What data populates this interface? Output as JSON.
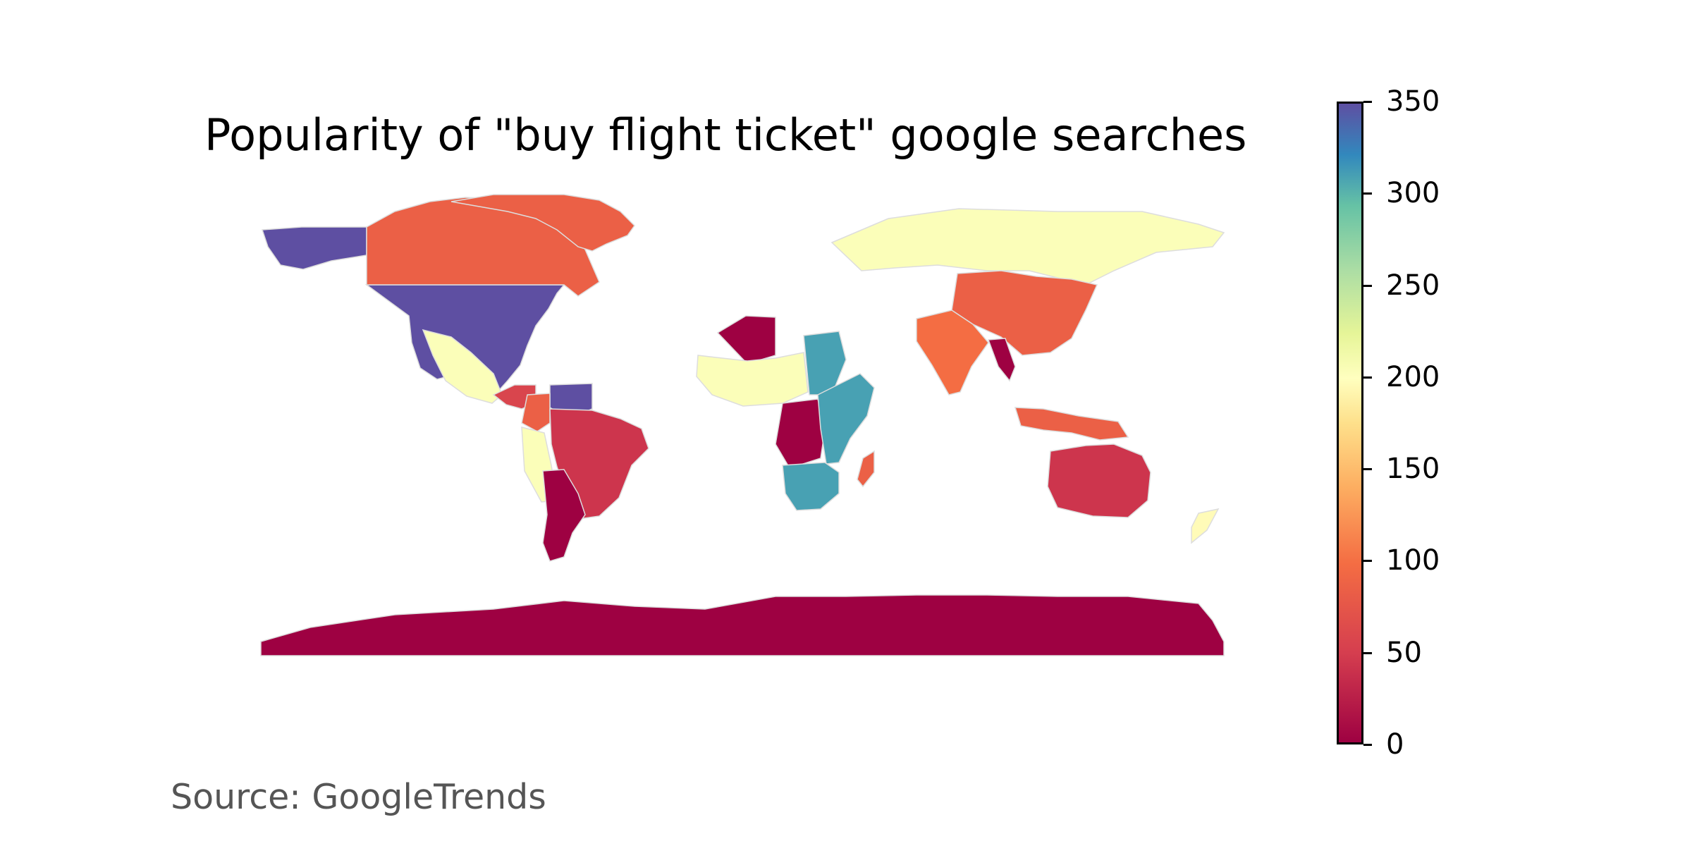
{
  "map": {
    "title": "Popularity of \"buy flight ticket\" google searches",
    "source": "Source: GoogleTrends"
  },
  "colorbar": {
    "min": 0,
    "max": 350,
    "ticks": [
      "0",
      "50",
      "100",
      "150",
      "200",
      "250",
      "300",
      "350"
    ],
    "colormap": "Spectral",
    "colors": [
      "#9e0142",
      "#d53e4f",
      "#f46d43",
      "#fdae61",
      "#fee08b",
      "#ffffbf",
      "#e6f598",
      "#abdda4",
      "#66c2a5",
      "#3288bd",
      "#5e4fa2"
    ]
  },
  "regions": [
    {
      "name": "Alaska",
      "level": 350
    },
    {
      "name": "United States",
      "level": 350
    },
    {
      "name": "Canada",
      "level": 60
    },
    {
      "name": "Greenland",
      "level": 60
    },
    {
      "name": "Mexico",
      "level": 180
    },
    {
      "name": "Central America",
      "level": 40
    },
    {
      "name": "Venezuela",
      "level": 350
    },
    {
      "name": "Colombia",
      "level": 60
    },
    {
      "name": "Peru",
      "level": 180
    },
    {
      "name": "Brazil",
      "level": 30
    },
    {
      "name": "Argentina",
      "level": 0
    },
    {
      "name": "Algeria",
      "level": 0
    },
    {
      "name": "West Africa",
      "level": 180
    },
    {
      "name": "Egypt",
      "level": 300
    },
    {
      "name": "Central Africa",
      "level": 0
    },
    {
      "name": "East Africa",
      "level": 300
    },
    {
      "name": "Southern Africa",
      "level": 300
    },
    {
      "name": "Madagascar",
      "level": 60
    },
    {
      "name": "Russia",
      "level": 180
    },
    {
      "name": "China",
      "level": 60
    },
    {
      "name": "India",
      "level": 70
    },
    {
      "name": "Myanmar",
      "level": 0
    },
    {
      "name": "Indonesia",
      "level": 60
    },
    {
      "name": "Australia",
      "level": 30
    },
    {
      "name": "New Zealand",
      "level": 170
    },
    {
      "name": "Antarctica",
      "level": 0
    }
  ]
}
